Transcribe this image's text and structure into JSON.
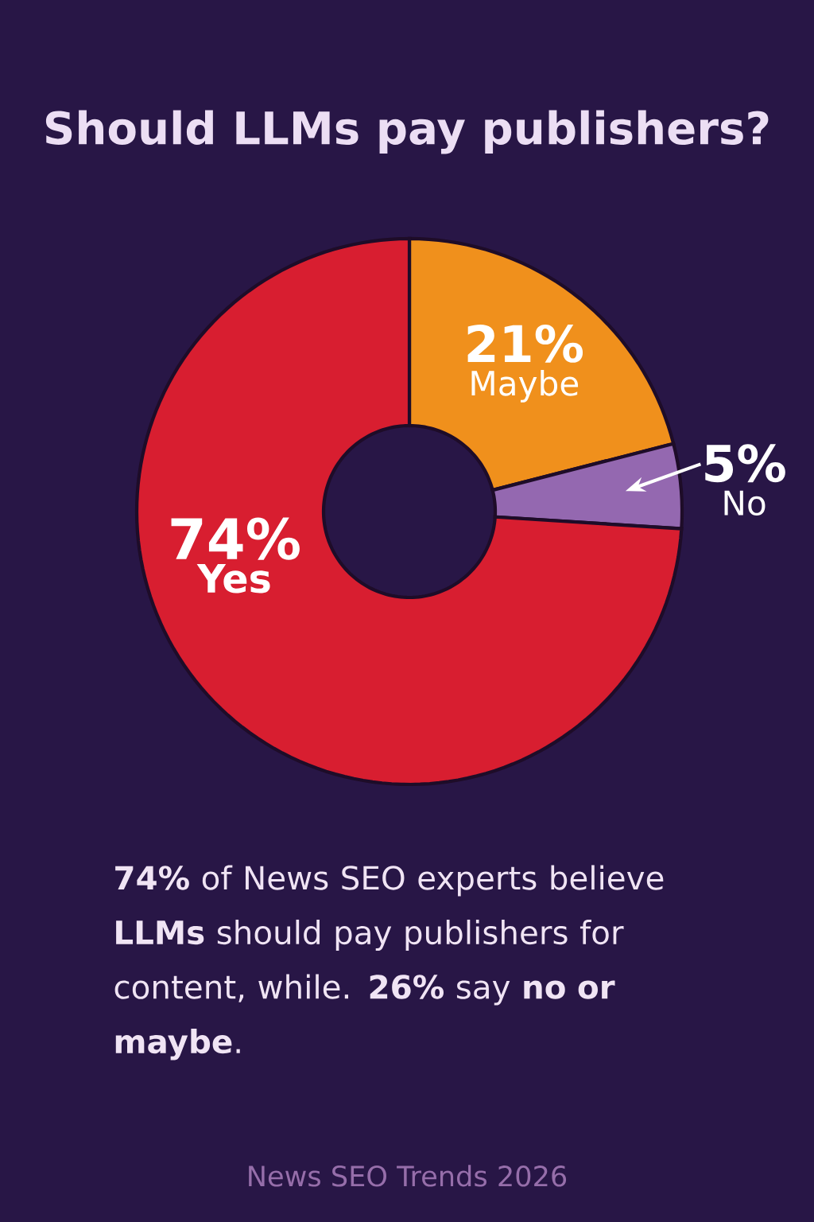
{
  "chart_data": {
    "type": "donut",
    "title": "Should LLMs pay publishers?",
    "categories": [
      "Maybe",
      "No",
      "Yes"
    ],
    "values": [
      21,
      5,
      74
    ],
    "value_labels": [
      "21%",
      "5%",
      "74%"
    ],
    "colors": [
      "#f0901c",
      "#9468b0",
      "#d81e30"
    ],
    "annotations": [
      "**74%** of News SEO experts believe **LLMs** should pay publishers for content, while. **26%** say **no or maybe**.",
      "News SEO Trends 2026"
    ]
  }
}
